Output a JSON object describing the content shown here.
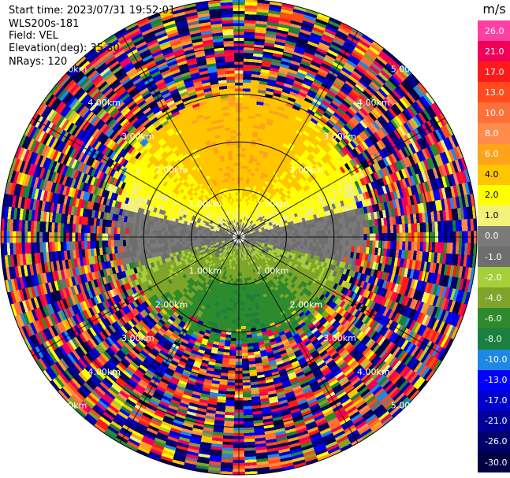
{
  "header": {
    "start_time": "Start time: 2023/07/31 19:52:01",
    "instrument": "WLS200s-181",
    "field": "Field: VEL",
    "elevation": "Elevation(deg): 35.30",
    "nrays": "NRays: 120"
  },
  "colorbar": {
    "unit": "m/s",
    "levels": [
      {
        "label": "26.0",
        "color": "#ff3fa4",
        "light": false
      },
      {
        "label": "21.0",
        "color": "#f0005a",
        "light": false
      },
      {
        "label": "17.0",
        "color": "#ff1a1a",
        "light": false
      },
      {
        "label": "13.0",
        "color": "#ff4b1e",
        "light": false
      },
      {
        "label": "10.0",
        "color": "#ff6f3a",
        "light": false
      },
      {
        "label": "8.0",
        "color": "#ff8c4a",
        "light": false
      },
      {
        "label": "6.0",
        "color": "#ffa31a",
        "light": false
      },
      {
        "label": "4.0",
        "color": "#ffc600",
        "light": true
      },
      {
        "label": "2.0",
        "color": "#ffff00",
        "light": true
      },
      {
        "label": "1.0",
        "color": "#f2f27a",
        "light": true
      },
      {
        "label": "0.0",
        "color": "#7a7a7a",
        "light": false
      },
      {
        "label": "-1.0",
        "color": "#6e6e6e",
        "light": false
      },
      {
        "label": "-2.0",
        "color": "#a6cf3a",
        "light": false
      },
      {
        "label": "-4.0",
        "color": "#7fa42a",
        "light": false
      },
      {
        "label": "-6.0",
        "color": "#2d8a2d",
        "light": false
      },
      {
        "label": "-8.0",
        "color": "#1a7f3f",
        "light": false
      },
      {
        "label": "-10.0",
        "color": "#1e88e5",
        "light": false
      },
      {
        "label": "-13.0",
        "color": "#0000ff",
        "light": false
      },
      {
        "label": "-17.0",
        "color": "#0000cc",
        "light": false
      },
      {
        "label": "-21.0",
        "color": "#000099",
        "light": false
      },
      {
        "label": "-26.0",
        "color": "#00006b",
        "light": false
      },
      {
        "label": "-30.0",
        "color": "#000044",
        "light": false
      }
    ]
  },
  "chart_data": {
    "type": "ppi",
    "field": "VEL",
    "units": "m/s",
    "elevation_deg": 35.3,
    "n_rays": 120,
    "max_range_km": 5.0,
    "range_ring_labels": [
      "1.00km",
      "2.00km",
      "3.00km",
      "4.00km",
      "5.00km"
    ],
    "value_range": [
      -30.0,
      26.0
    ],
    "pattern_note": "near-range: positive (yellow/orange) to the north, negative (green) to the south; beyond about 3 km values are noise"
  }
}
